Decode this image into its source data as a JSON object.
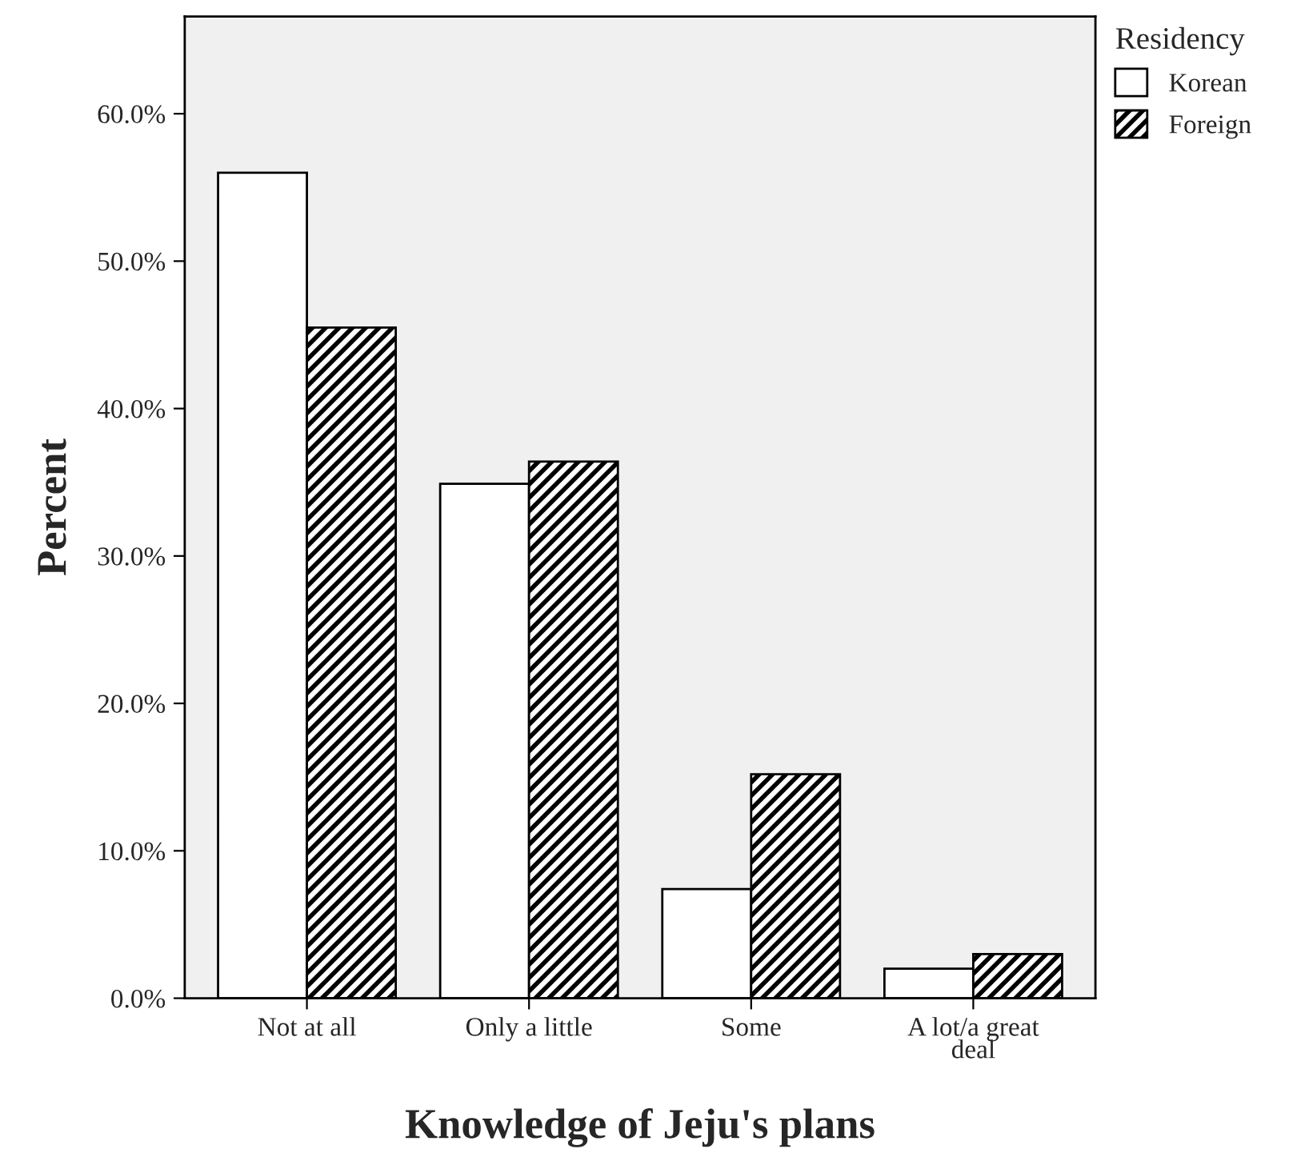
{
  "chart_data": {
    "type": "bar",
    "xlabel": "Knowledge of Jeju's plans",
    "ylabel": "Percent",
    "legend_title": "Residency",
    "legend": "top right",
    "categories": [
      "Not at all",
      "Only a little",
      "Some",
      "A lot/a great deal"
    ],
    "series": [
      {
        "name": "Korean",
        "color": "#ffffff",
        "values": [
          56.0,
          34.9,
          7.4,
          2.0
        ]
      },
      {
        "name": "Foreign",
        "color": "#000000",
        "values": [
          45.5,
          36.4,
          15.2,
          3.0
        ]
      }
    ],
    "ylim": [
      0,
      66.6
    ],
    "yticks": [
      {
        "value": 0,
        "label": "0.0%"
      },
      {
        "value": 10,
        "label": "10.0%"
      },
      {
        "value": 20,
        "label": "20.0%"
      },
      {
        "value": 30,
        "label": "30.0%"
      },
      {
        "value": 40,
        "label": "40.0%"
      },
      {
        "value": 50,
        "label": "50.0%"
      },
      {
        "value": 60,
        "label": "60.0%"
      }
    ],
    "grid": false
  }
}
